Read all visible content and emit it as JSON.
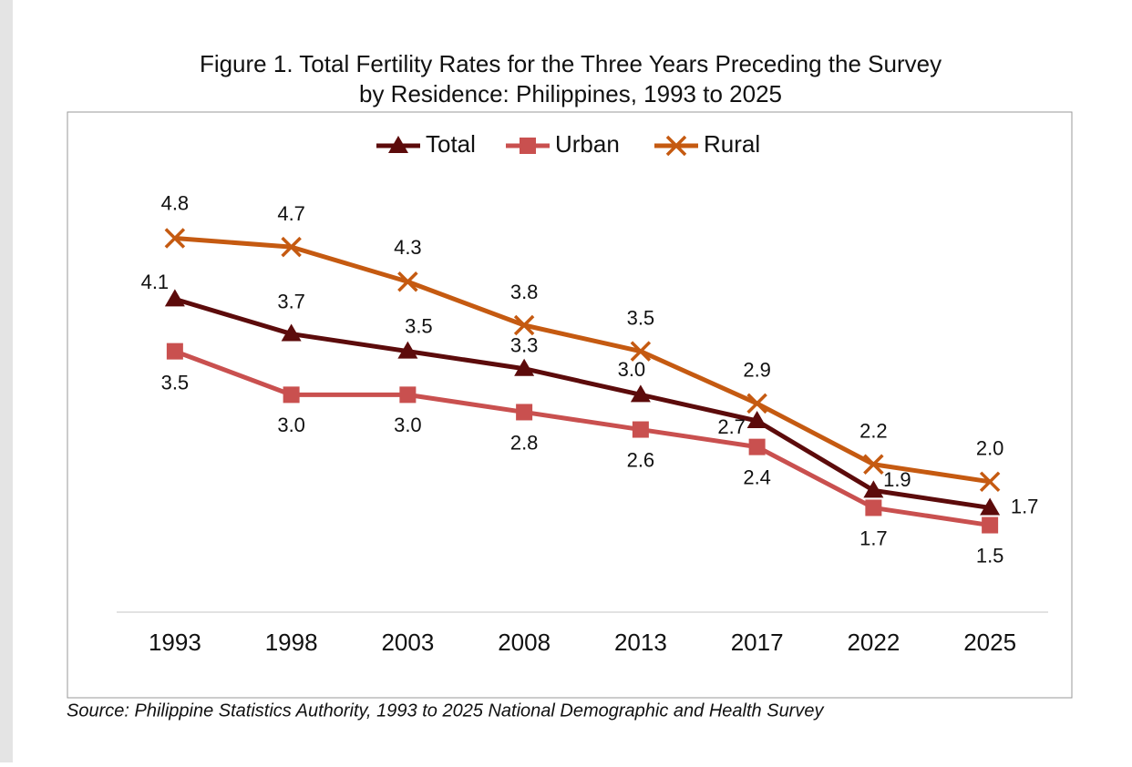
{
  "chart_data": {
    "type": "line",
    "title": [
      "Figure 1. Total Fertility Rates for the Three Years Preceding the Survey",
      "by Residence: Philippines, 1993 to 2025"
    ],
    "source": "Source: Philippine Statistics Authority, 1993 to 2025 National Demographic and Health Survey",
    "categories": [
      "1993",
      "1998",
      "2003",
      "2008",
      "2013",
      "2017",
      "2022",
      "2025"
    ],
    "ylim": [
      0.5,
      6
    ],
    "legend": "top",
    "series": [
      {
        "name": "Total",
        "color": "#5c0b0b",
        "marker": "triangle",
        "values": [
          4.1,
          3.7,
          3.5,
          3.3,
          3,
          2.7,
          1.9,
          1.7
        ],
        "value_labels": [
          "4.1",
          "3.7",
          "3.5",
          "3.3",
          "3.0",
          "2.7",
          "1.9",
          "1.7"
        ]
      },
      {
        "name": "Urban",
        "color": "#c9504f",
        "marker": "square",
        "values": [
          3.5,
          3,
          3,
          2.8,
          2.6,
          2.4,
          1.7,
          1.5
        ],
        "value_labels": [
          "3.5",
          "3.0",
          "3.0",
          "2.8",
          "2.6",
          "2.4",
          "1.7",
          "1.5"
        ]
      },
      {
        "name": "Rural",
        "color": "#c55a11",
        "marker": "x",
        "values": [
          4.8,
          4.7,
          4.3,
          3.8,
          3.5,
          2.9,
          2.2,
          2
        ],
        "value_labels": [
          "4.8",
          "4.7",
          "4.3",
          "3.8",
          "3.5",
          "2.9",
          "2.2",
          "2.0"
        ]
      }
    ]
  }
}
